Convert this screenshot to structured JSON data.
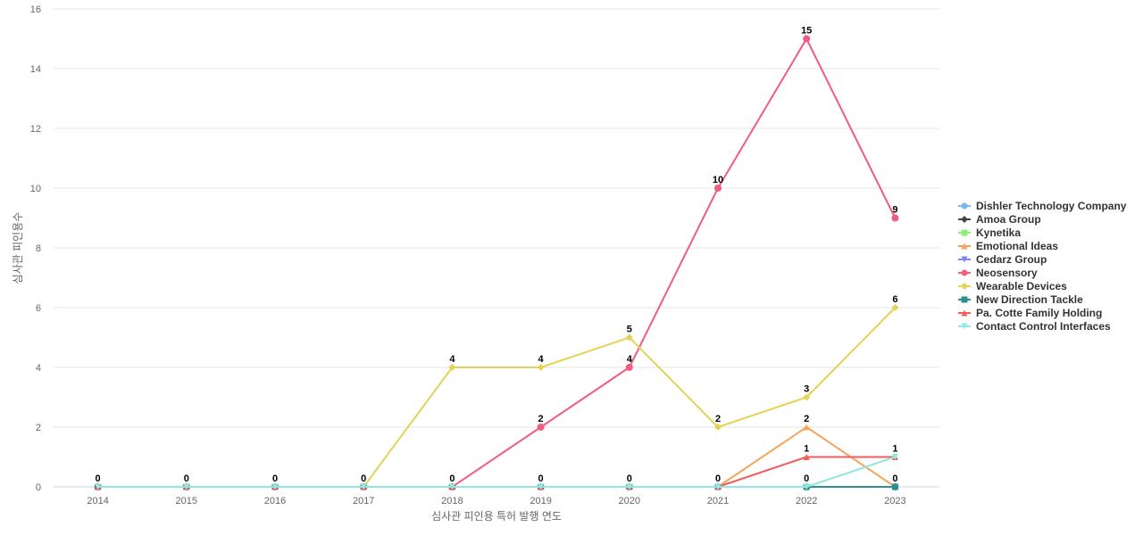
{
  "chart_data": {
    "type": "line",
    "title": "",
    "xlabel": "심사관 피인용 특허 발행 연도",
    "ylabel": "심사관 피인용수",
    "x": [
      "2014",
      "2015",
      "2016",
      "2017",
      "2018",
      "2019",
      "2020",
      "2021",
      "2022",
      "2023"
    ],
    "ylim": [
      0,
      16
    ],
    "yticks": [
      0,
      2,
      4,
      6,
      8,
      10,
      12,
      14,
      16
    ],
    "grid": true,
    "legend_position": "right",
    "series": [
      {
        "name": "Dishler Technology Company",
        "color": "#7cb5ec",
        "marker": "circle",
        "values": [
          0,
          0,
          0,
          0,
          0,
          0,
          0,
          0,
          0,
          0
        ]
      },
      {
        "name": "Amoa Group",
        "color": "#434348",
        "marker": "diamond",
        "values": [
          0,
          0,
          0,
          0,
          0,
          0,
          0,
          0,
          0,
          0
        ]
      },
      {
        "name": "Kynetika",
        "color": "#90ed7d",
        "marker": "square",
        "values": [
          0,
          0,
          0,
          0,
          0,
          0,
          0,
          0,
          0,
          0
        ]
      },
      {
        "name": "Emotional Ideas",
        "color": "#f7a35c",
        "marker": "triangle",
        "values": [
          0,
          0,
          0,
          0,
          0,
          0,
          0,
          0,
          2,
          0
        ]
      },
      {
        "name": "Cedarz Group",
        "color": "#8085e9",
        "marker": "triangle-down",
        "values": [
          0,
          0,
          0,
          0,
          0,
          0,
          0,
          0,
          0,
          0
        ]
      },
      {
        "name": "Neosensory",
        "color": "#f15c80",
        "marker": "circle",
        "values": [
          0,
          0,
          0,
          0,
          0,
          2,
          4,
          10,
          15,
          9
        ]
      },
      {
        "name": "Wearable Devices",
        "color": "#e4d354",
        "marker": "diamond",
        "values": [
          0,
          0,
          0,
          0,
          4,
          4,
          5,
          2,
          3,
          6
        ]
      },
      {
        "name": "New Direction Tackle",
        "color": "#2b908f",
        "marker": "square",
        "values": [
          0,
          0,
          0,
          0,
          0,
          0,
          0,
          0,
          0,
          0
        ]
      },
      {
        "name": "Pa. Cotte Family Holding",
        "color": "#f45b5b",
        "marker": "triangle",
        "values": [
          0,
          0,
          0,
          0,
          0,
          0,
          0,
          0,
          1,
          1
        ]
      },
      {
        "name": "Contact Control Interfaces",
        "color": "#91e8e1",
        "marker": "triangle-down",
        "values": [
          0,
          0,
          0,
          0,
          0,
          0,
          0,
          0,
          0,
          1
        ]
      }
    ],
    "data_labels": [
      {
        "series": "Neosensory",
        "x": "2014",
        "value": "0"
      },
      {
        "series": "Neosensory",
        "x": "2015",
        "value": "0"
      },
      {
        "series": "Neosensory",
        "x": "2016",
        "value": "0"
      },
      {
        "series": "Neosensory",
        "x": "2017",
        "value": "0"
      },
      {
        "series": "Neosensory",
        "x": "2018",
        "value": "0"
      },
      {
        "series": "Wearable Devices",
        "x": "2018",
        "value": "4"
      },
      {
        "series": "Neosensory",
        "x": "2019",
        "value": "2"
      },
      {
        "series": "Wearable Devices",
        "x": "2019",
        "value": "4"
      },
      {
        "series": "Kynetika",
        "x": "2019",
        "value": "0"
      },
      {
        "series": "Neosensory",
        "x": "2020",
        "value": "4"
      },
      {
        "series": "Wearable Devices",
        "x": "2020",
        "value": "5"
      },
      {
        "series": "Kynetika",
        "x": "2020",
        "value": "0"
      },
      {
        "series": "Neosensory",
        "x": "2021",
        "value": "10"
      },
      {
        "series": "Wearable Devices",
        "x": "2021",
        "value": "2"
      },
      {
        "series": "Kynetika",
        "x": "2021",
        "value": "0"
      },
      {
        "series": "Neosensory",
        "x": "2022",
        "value": "15"
      },
      {
        "series": "Wearable Devices",
        "x": "2022",
        "value": "3"
      },
      {
        "series": "Emotional Ideas",
        "x": "2022",
        "value": "2"
      },
      {
        "series": "Pa. Cotte Family Holding",
        "x": "2022",
        "value": "1"
      },
      {
        "series": "Kynetika",
        "x": "2022",
        "value": "0"
      },
      {
        "series": "Neosensory",
        "x": "2023",
        "value": "9"
      },
      {
        "series": "Wearable Devices",
        "x": "2023",
        "value": "6"
      },
      {
        "series": "Contact Control Interfaces",
        "x": "2023",
        "value": "1"
      },
      {
        "series": "Kynetika",
        "x": "2023",
        "value": "0"
      }
    ]
  }
}
